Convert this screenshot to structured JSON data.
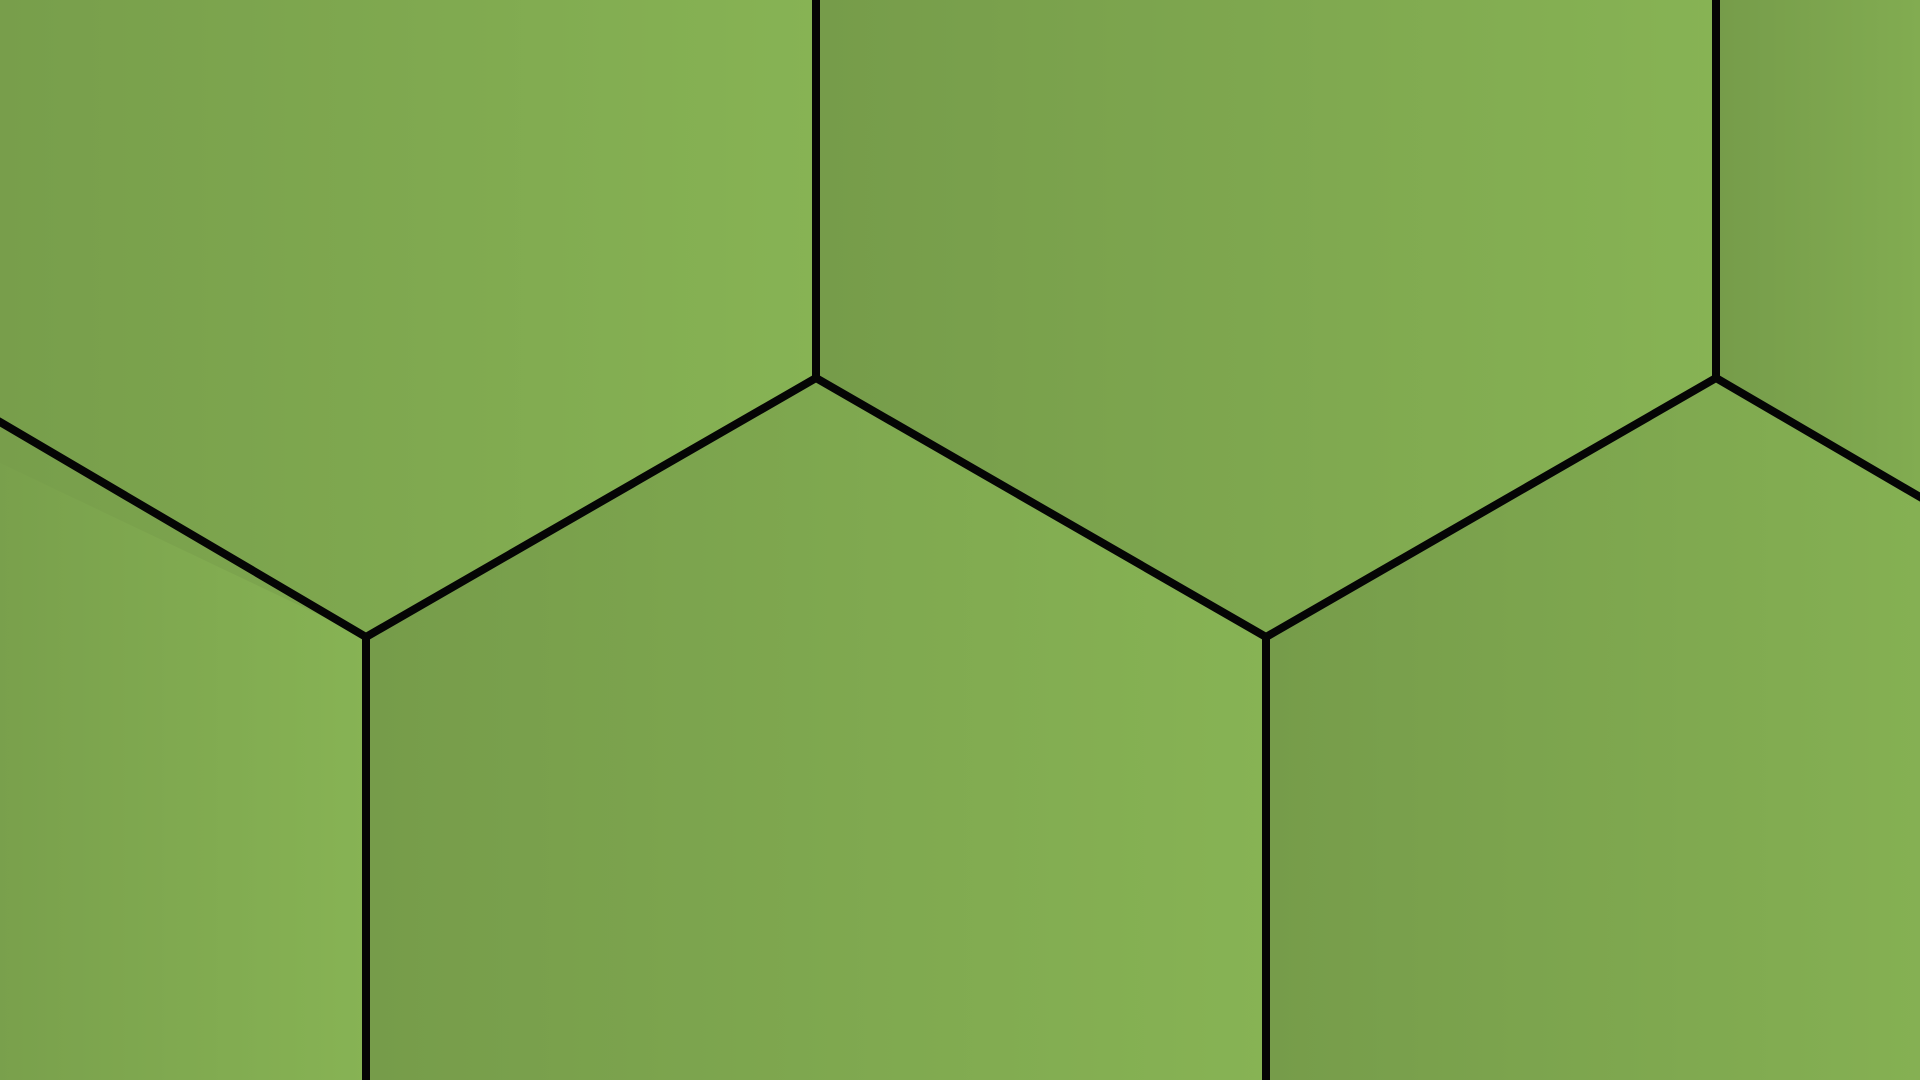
{
  "background": {
    "pattern": "hexagon-tiles",
    "colors": {
      "tile_dark": "#769c4a",
      "tile_light": "#87b354",
      "outline": "#050505"
    }
  }
}
